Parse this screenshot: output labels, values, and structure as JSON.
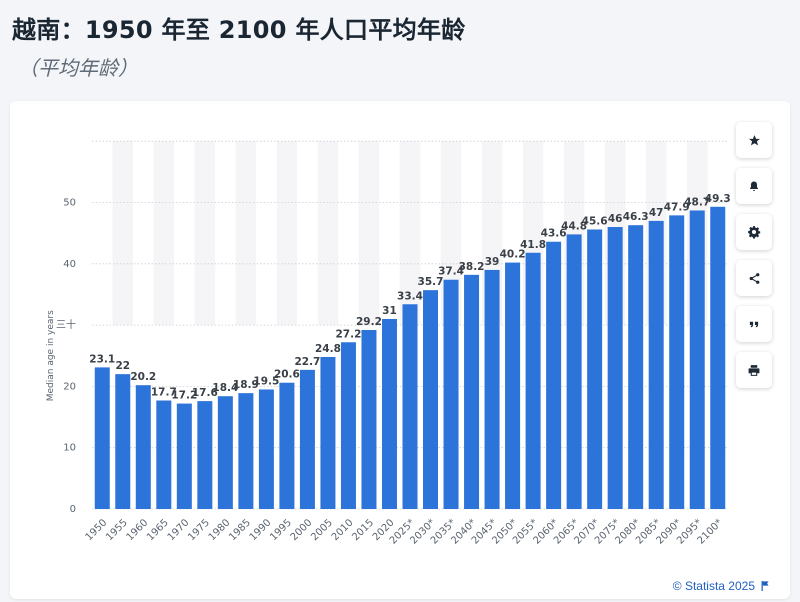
{
  "page": {
    "title": "越南：1950 年至 2100 年人口平均年龄",
    "subtitle": "（平均年龄）"
  },
  "toolbar": {
    "buttons": [
      {
        "name": "star-icon"
      },
      {
        "name": "bell-icon"
      },
      {
        "name": "gear-icon"
      },
      {
        "name": "share-icon"
      },
      {
        "name": "quote-icon"
      },
      {
        "name": "print-icon"
      }
    ]
  },
  "footer": {
    "copyright": "© Statista 2025",
    "flag_icon": "flag-icon"
  },
  "chart_data": {
    "type": "bar",
    "ylabel": "Median age in years",
    "ylim": [
      0,
      60
    ],
    "yticks": [
      "0",
      "10",
      "20",
      "三十",
      "40",
      "50"
    ],
    "grid": true,
    "bar_color": "#2d74da",
    "categories": [
      "1950",
      "1955",
      "1960",
      "1965",
      "1970",
      "1975",
      "1980",
      "1985",
      "1990",
      "1995",
      "2000",
      "2005",
      "2010",
      "2015",
      "2020",
      "2025*",
      "2030*",
      "2035*",
      "2040*",
      "2045*",
      "2050*",
      "2055*",
      "2060*",
      "2065*",
      "2070*",
      "2075*",
      "2080*",
      "2085*",
      "2090*",
      "2095*",
      "2100*"
    ],
    "values": [
      23.1,
      22,
      20.2,
      17.7,
      17.2,
      17.6,
      18.4,
      18.9,
      19.5,
      20.6,
      22.7,
      24.8,
      27.2,
      29.2,
      31,
      33.4,
      35.7,
      37.4,
      38.2,
      39,
      40.2,
      41.8,
      43.6,
      44.8,
      45.6,
      46,
      46.3,
      47,
      47.9,
      48.7,
      49.3
    ],
    "value_labels": [
      "23.1",
      "22",
      "20.2",
      "17.7",
      "17.2",
      "17.6",
      "18.4",
      "18.9",
      "19.5",
      "20.6",
      "22.7",
      "24.8",
      "27.2",
      "29.2",
      "31",
      "33.4",
      "35.7",
      "37.4",
      "38.2",
      "39",
      "40.2",
      "41.8",
      "43.6",
      "44.8",
      "45.6",
      "46",
      "46.3",
      "47",
      "47.9",
      "48.7",
      "49.3"
    ]
  }
}
